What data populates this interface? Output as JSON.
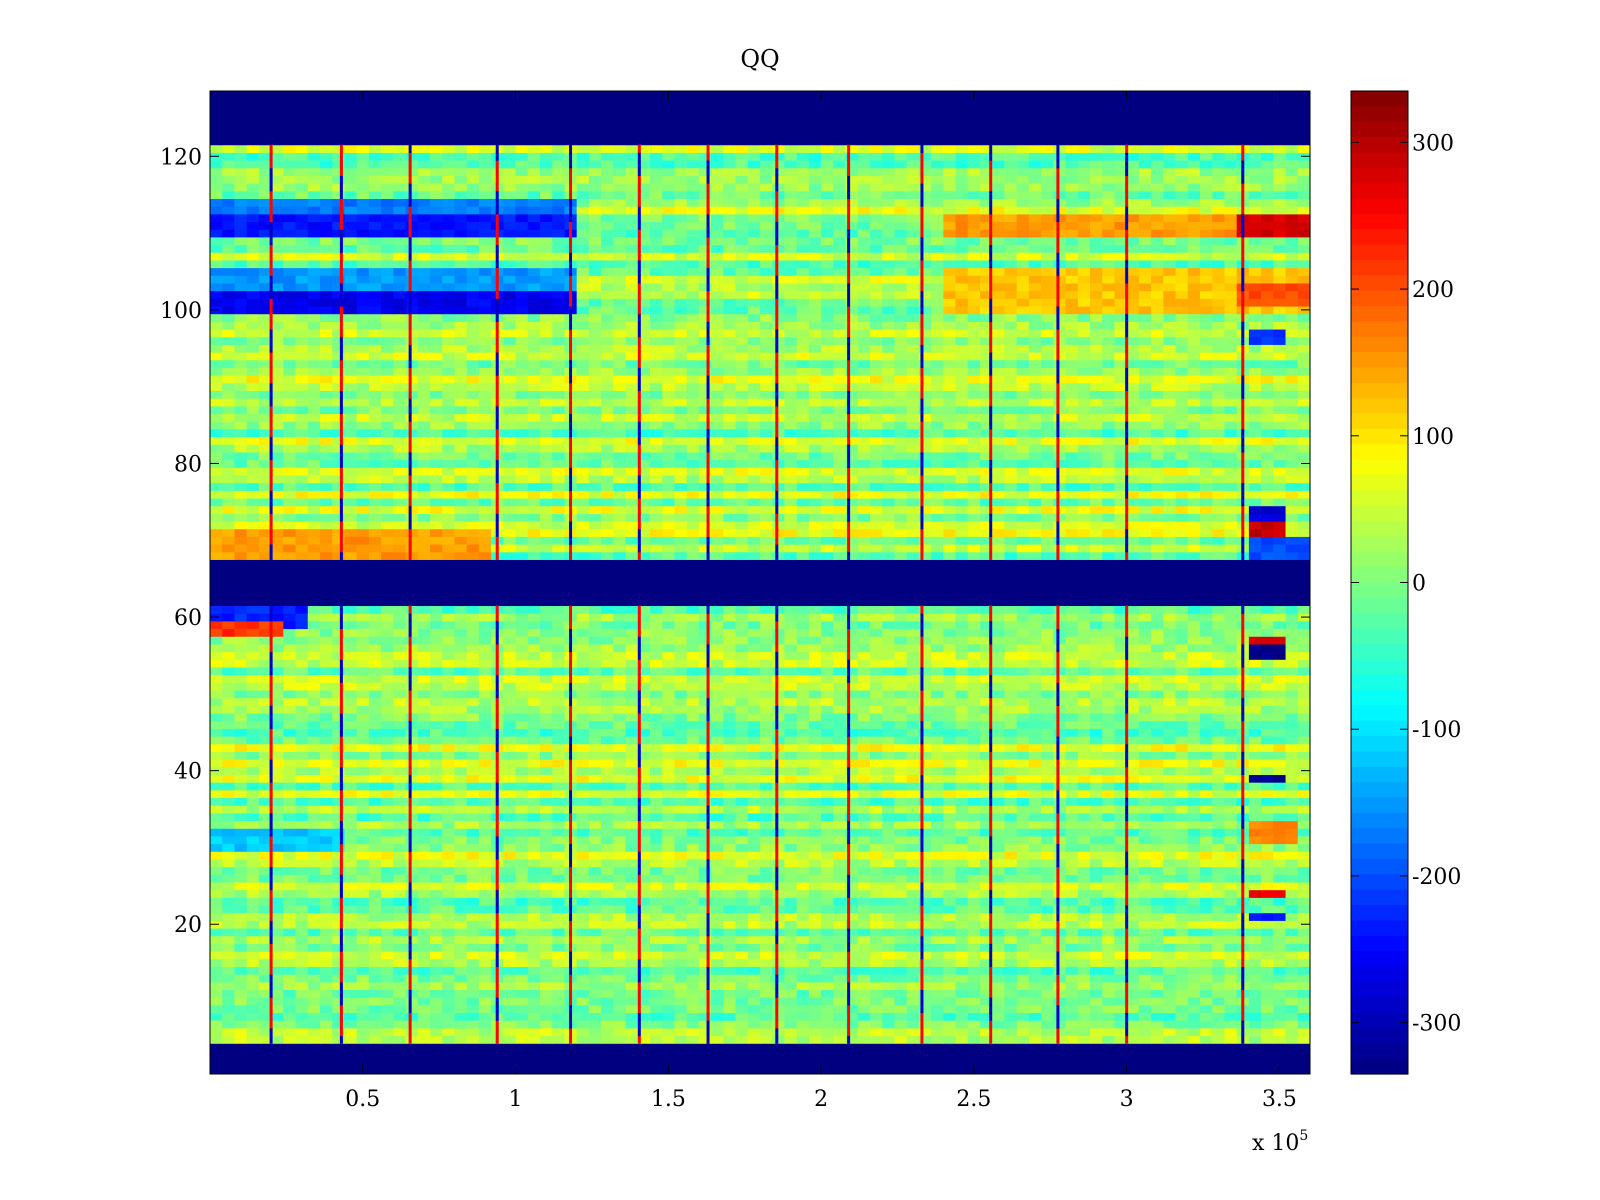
{
  "chart_data": {
    "type": "heatmap",
    "title": "QQ",
    "xlabel": "",
    "ylabel": "",
    "x_scale_note": {
      "base": "x 10",
      "exponent": "5"
    },
    "xlim": [
      0,
      3.6
    ],
    "ylim": [
      1,
      128
    ],
    "x_ticks": [
      {
        "value": 0.5,
        "label": "0.5"
      },
      {
        "value": 1,
        "label": "1"
      },
      {
        "value": 1.5,
        "label": "1.5"
      },
      {
        "value": 2,
        "label": "2"
      },
      {
        "value": 2.5,
        "label": "2.5"
      },
      {
        "value": 3,
        "label": "3"
      },
      {
        "value": 3.5,
        "label": "3.5"
      }
    ],
    "y_ticks": [
      {
        "value": 20,
        "label": "20"
      },
      {
        "value": 40,
        "label": "40"
      },
      {
        "value": 60,
        "label": "60"
      },
      {
        "value": 80,
        "label": "80"
      },
      {
        "value": 100,
        "label": "100"
      },
      {
        "value": 120,
        "label": "120"
      }
    ],
    "colorbar": {
      "colormap": "jet",
      "clim": [
        -335,
        335
      ],
      "ticks": [
        {
          "value": 300,
          "label": "300"
        },
        {
          "value": 200,
          "label": "200"
        },
        {
          "value": 100,
          "label": "100"
        },
        {
          "value": 0,
          "label": "0"
        },
        {
          "value": -100,
          "label": "-100"
        },
        {
          "value": -200,
          "label": "-200"
        },
        {
          "value": -300,
          "label": "-300"
        }
      ]
    },
    "masked_row_ranges": [
      [
        1,
        4
      ],
      [
        62,
        67
      ],
      [
        122,
        128
      ]
    ],
    "masked_value": -335,
    "background_value": 20,
    "vertical_stripes_x": [
      0.2,
      0.43,
      0.655,
      0.94,
      1.18,
      1.405,
      1.63,
      1.855,
      2.09,
      2.33,
      2.555,
      2.775,
      3.0,
      3.38
    ],
    "row_band_values": [
      {
        "rows": [
          110,
          112
        ],
        "x_start": 0.0,
        "x_end": 1.2,
        "value": -240
      },
      {
        "rows": [
          113,
          114
        ],
        "x_start": 0.0,
        "x_end": 1.2,
        "value": -170
      },
      {
        "rows": [
          100,
          102
        ],
        "x_start": 0.0,
        "x_end": 1.2,
        "value": -260
      },
      {
        "rows": [
          103,
          105
        ],
        "x_start": 0.0,
        "x_end": 1.2,
        "value": -150
      },
      {
        "rows": [
          110,
          112
        ],
        "x_start": 2.4,
        "x_end": 3.6,
        "value": 150
      },
      {
        "rows": [
          100,
          105
        ],
        "x_start": 2.4,
        "x_end": 3.6,
        "value": 120
      },
      {
        "rows": [
          68,
          71
        ],
        "x_start": 0.0,
        "x_end": 0.9,
        "value": 150
      },
      {
        "rows": [
          59,
          61
        ],
        "x_start": 0.0,
        "x_end": 0.3,
        "value": -230
      },
      {
        "rows": [
          58,
          59
        ],
        "x_start": 0.0,
        "x_end": 0.25,
        "value": 220
      },
      {
        "rows": [
          30,
          32
        ],
        "x_start": 0.0,
        "x_end": 0.45,
        "value": -120
      }
    ],
    "hotspots": [
      {
        "rows": [
          110,
          112
        ],
        "x_start": 3.38,
        "x_end": 3.6,
        "value": 280
      },
      {
        "rows": [
          101,
          103
        ],
        "x_start": 3.38,
        "x_end": 3.6,
        "value": 200
      },
      {
        "rows": [
          96,
          97
        ],
        "x_start": 3.4,
        "x_end": 3.52,
        "value": -220
      },
      {
        "rows": [
          71,
          72
        ],
        "x_start": 3.4,
        "x_end": 3.5,
        "value": 290
      },
      {
        "rows": [
          73,
          74
        ],
        "x_start": 3.4,
        "x_end": 3.5,
        "value": -280
      },
      {
        "rows": [
          68,
          70
        ],
        "x_start": 3.4,
        "x_end": 3.6,
        "value": -200
      },
      {
        "rows": [
          55,
          56
        ],
        "x_start": 3.4,
        "x_end": 3.52,
        "value": -330
      },
      {
        "rows": [
          57,
          57
        ],
        "x_start": 3.4,
        "x_end": 3.52,
        "value": 270
      },
      {
        "rows": [
          39,
          39
        ],
        "x_start": 3.42,
        "x_end": 3.5,
        "value": -330
      },
      {
        "rows": [
          31,
          33
        ],
        "x_start": 3.4,
        "x_end": 3.55,
        "value": 160
      },
      {
        "rows": [
          24,
          24
        ],
        "x_start": 3.4,
        "x_end": 3.52,
        "value": 260
      },
      {
        "rows": [
          21,
          21
        ],
        "x_start": 3.4,
        "x_end": 3.52,
        "value": -230
      }
    ]
  }
}
